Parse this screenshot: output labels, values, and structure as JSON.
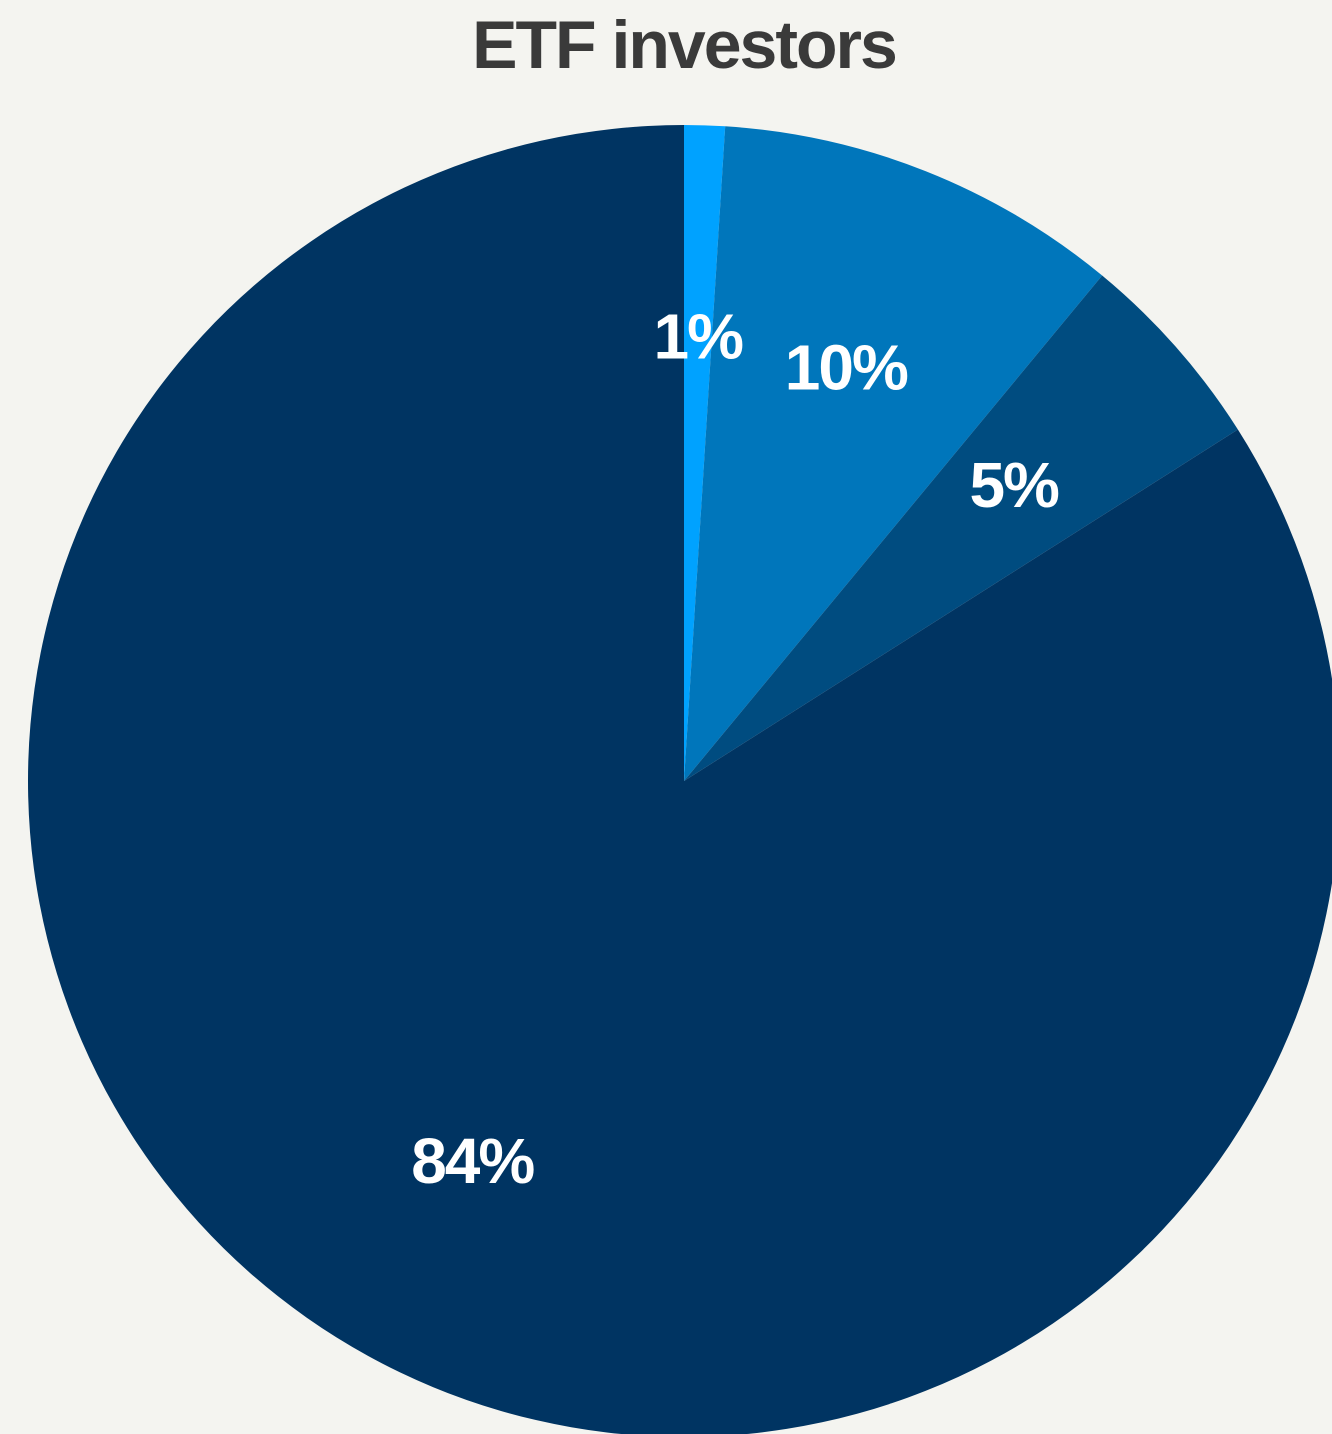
{
  "chart_data": {
    "type": "pie",
    "title": "ETF investors",
    "values": [
      1,
      10,
      5,
      84
    ],
    "value_labels": [
      "1%",
      "10%",
      "5%",
      "84%"
    ],
    "colors": [
      "#00a2ff",
      "#0076bb",
      "#004c80",
      "#003462"
    ]
  }
}
